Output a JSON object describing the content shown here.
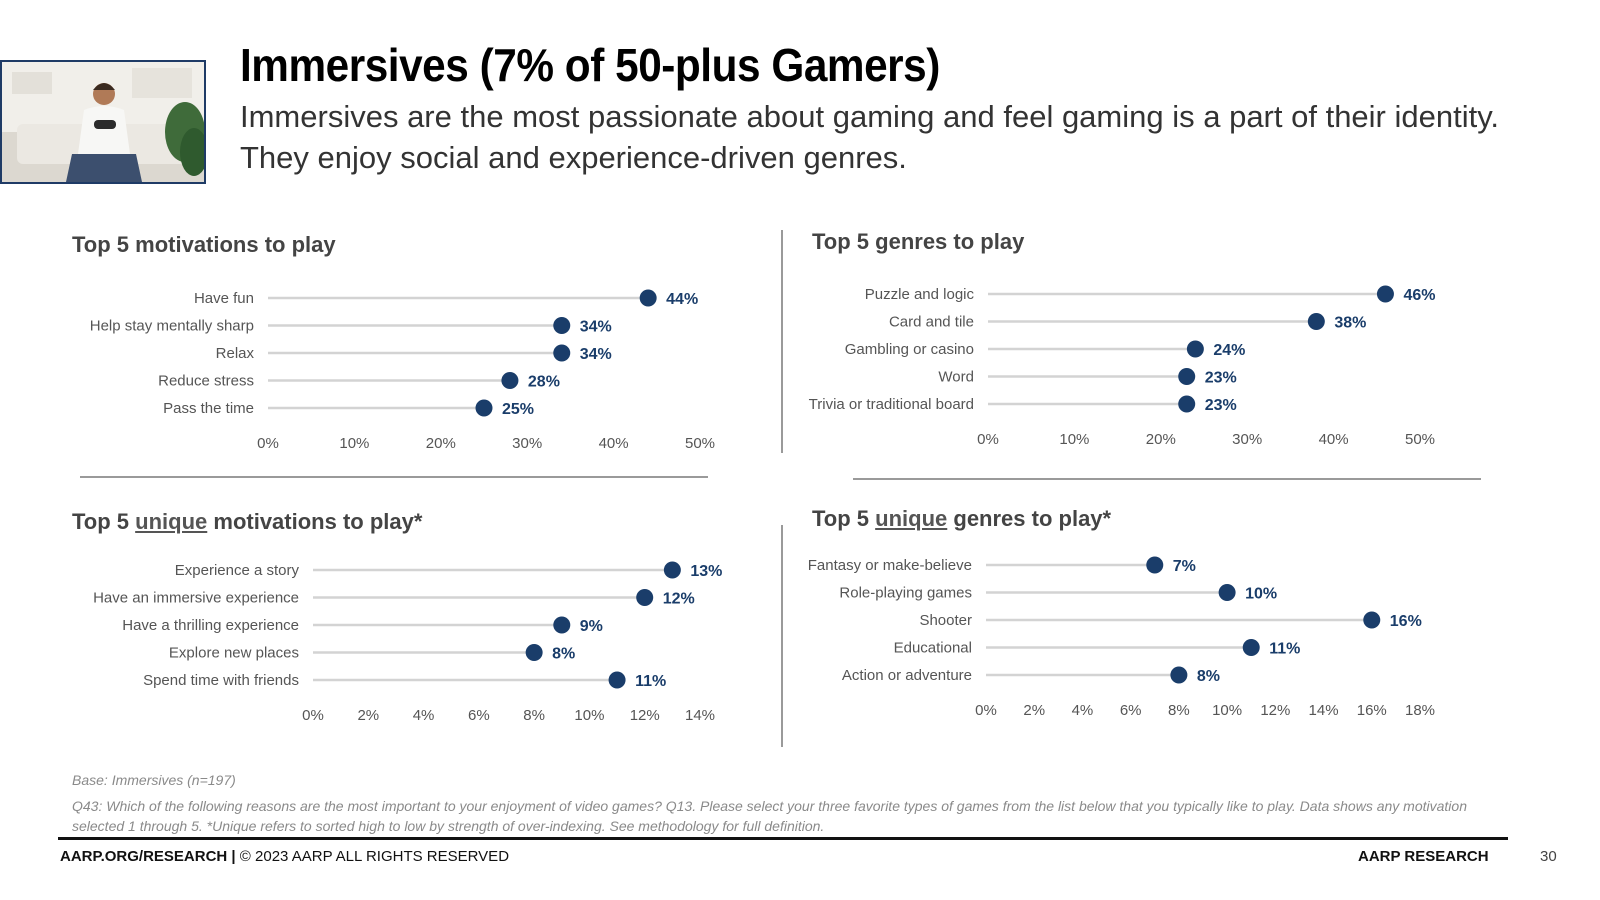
{
  "header": {
    "title": "Immersives (7% of 50-plus Gamers)",
    "subtitle": "Immersives are the most passionate about gaming and feel gaming is a part of their identity. They enjoy social and experience-driven genres."
  },
  "colors": {
    "dot": "#1a3d6a",
    "line": "#d3d3d3",
    "value_text": "#1a3d6a",
    "label_text": "#555555"
  },
  "chart_data": [
    {
      "type": "lollipop",
      "title": "Top 5 motivations to play",
      "categories": [
        "Have fun",
        "Help stay mentally sharp",
        "Relax",
        "Reduce stress",
        "Pass the time"
      ],
      "values": [
        44,
        34,
        34,
        28,
        25
      ],
      "value_labels": [
        "44%",
        "34%",
        "34%",
        "28%",
        "25%"
      ],
      "xlim": [
        0,
        50
      ],
      "ticks": [
        0,
        10,
        20,
        30,
        40,
        50
      ],
      "tick_labels": [
        "0%",
        "10%",
        "20%",
        "30%",
        "40%",
        "50%"
      ]
    },
    {
      "type": "lollipop",
      "title": "Top 5 genres to play",
      "categories": [
        "Puzzle and logic",
        "Card and tile",
        "Gambling or casino",
        "Word",
        "Trivia or traditional board"
      ],
      "values": [
        46,
        38,
        24,
        23,
        23
      ],
      "value_labels": [
        "46%",
        "38%",
        "24%",
        "23%",
        "23%"
      ],
      "xlim": [
        0,
        50
      ],
      "ticks": [
        0,
        10,
        20,
        30,
        40,
        50
      ],
      "tick_labels": [
        "0%",
        "10%",
        "20%",
        "30%",
        "40%",
        "50%"
      ]
    },
    {
      "type": "lollipop",
      "title_prefix": "Top 5 ",
      "title_emphasis": "unique",
      "title_suffix": " motivations to play*",
      "categories": [
        "Experience a story",
        "Have an immersive experience",
        "Have a thrilling experience",
        "Explore new places",
        "Spend time with friends"
      ],
      "values": [
        13,
        12,
        9,
        8,
        11
      ],
      "value_labels": [
        "13%",
        "12%",
        "9%",
        "8%",
        "11%"
      ],
      "xlim": [
        0,
        14
      ],
      "ticks": [
        0,
        2,
        4,
        6,
        8,
        10,
        12,
        14
      ],
      "tick_labels": [
        "0%",
        "2%",
        "4%",
        "6%",
        "8%",
        "10%",
        "12%",
        "14%"
      ]
    },
    {
      "type": "lollipop",
      "title_prefix": "Top 5 ",
      "title_emphasis": "unique",
      "title_suffix": " genres to play*",
      "categories": [
        "Fantasy or make-believe",
        "Role-playing games",
        "Shooter",
        "Educational",
        "Action or adventure"
      ],
      "values": [
        7,
        10,
        16,
        11,
        8
      ],
      "value_labels": [
        "7%",
        "10%",
        "16%",
        "11%",
        "8%"
      ],
      "xlim": [
        0,
        18
      ],
      "ticks": [
        0,
        2,
        4,
        6,
        8,
        10,
        12,
        14,
        16,
        18
      ],
      "tick_labels": [
        "0%",
        "2%",
        "4%",
        "6%",
        "8%",
        "10%",
        "12%",
        "14%",
        "16%",
        "18%"
      ]
    }
  ],
  "footnotes": {
    "base": "Base: Immersives (n=197)",
    "question": "Q43: Which of the following reasons are the most important to your enjoyment of video games?  Q13. Please select your three favorite types of games from the list below that you typically like to play. Data shows any motivation selected 1 through 5. *Unique refers to sorted high to low by strength of over-indexing. See methodology for full definition."
  },
  "footer": {
    "left_bold": "AARP.ORG/RESEARCH |",
    "left_rest": " © 2023 AARP ALL RIGHTS RESERVED",
    "right": "AARP RESEARCH",
    "page_number": "30"
  }
}
